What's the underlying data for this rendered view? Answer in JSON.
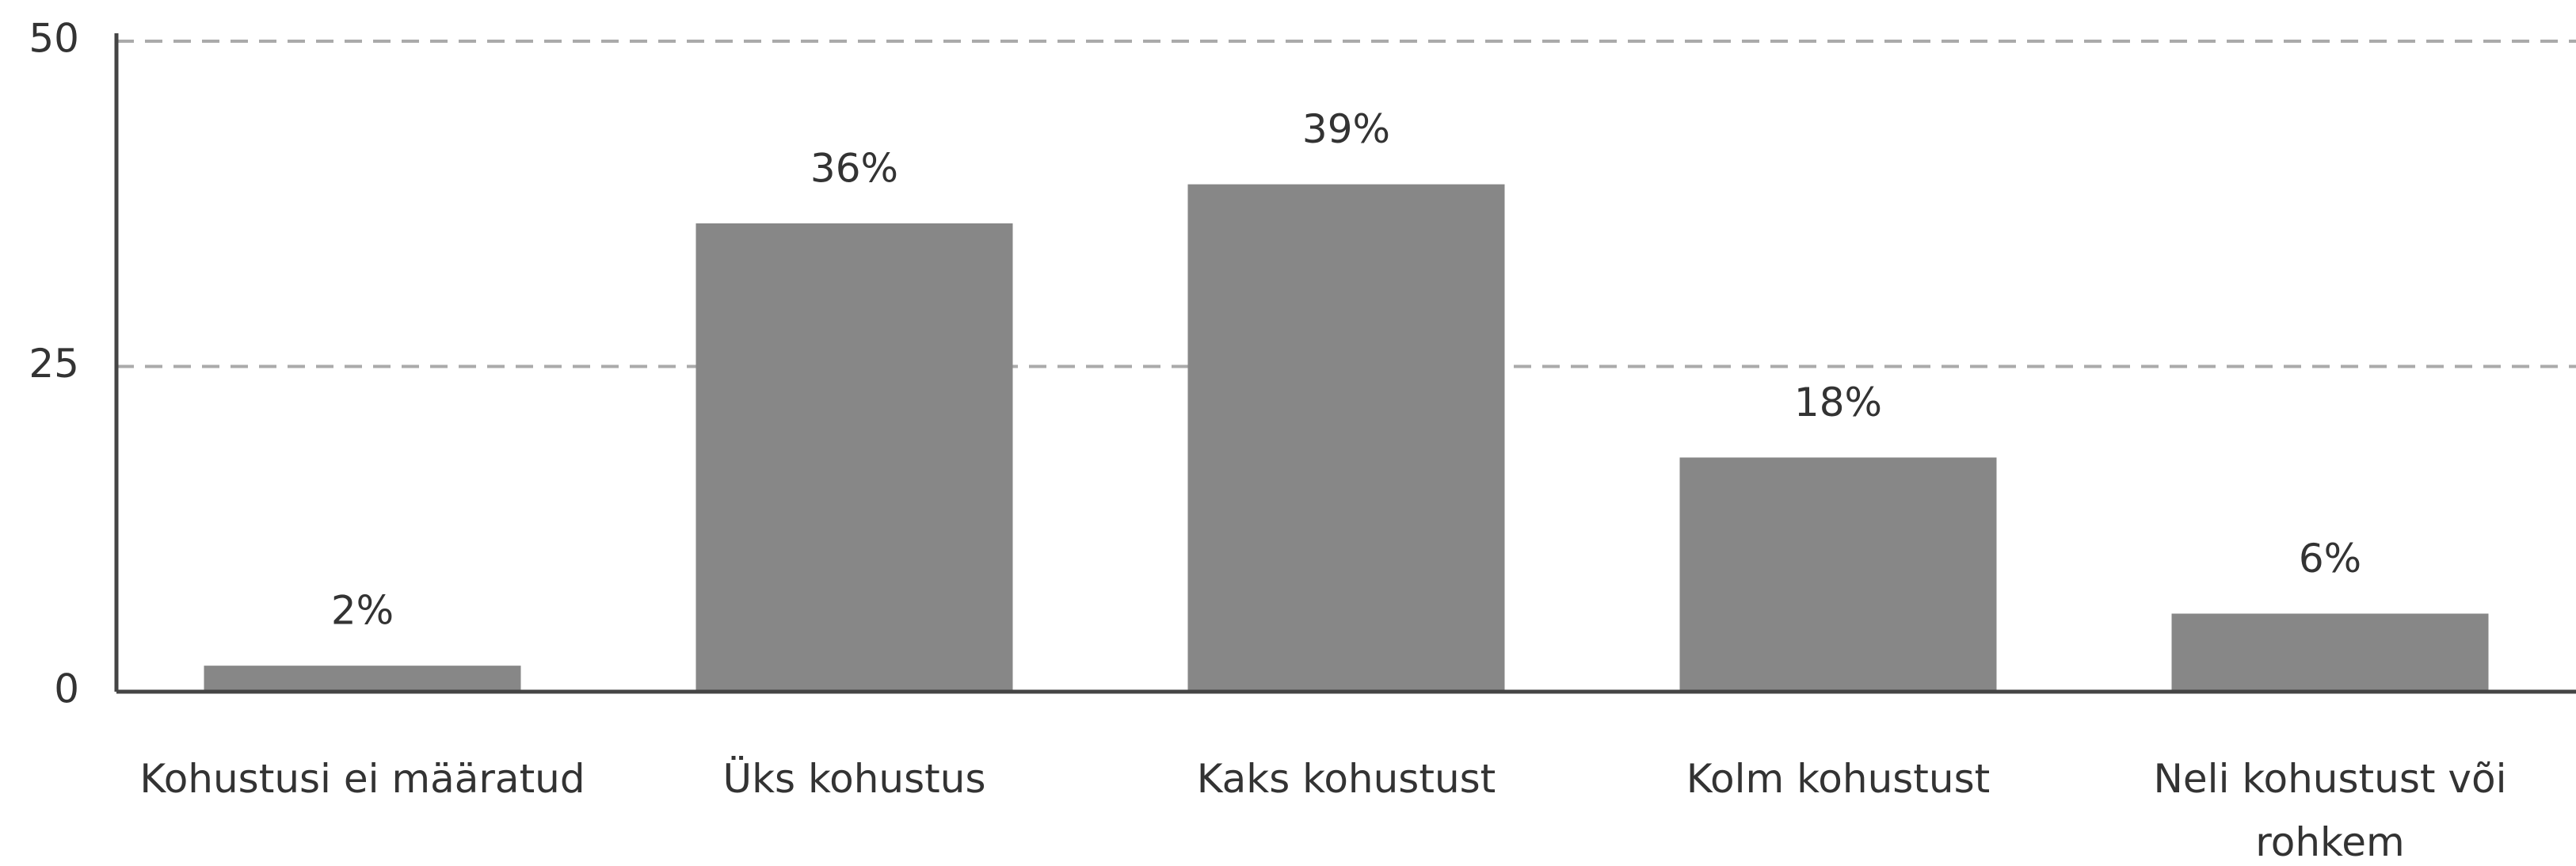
{
  "chart_data": {
    "type": "bar",
    "categories": [
      "Kohustusi ei määratud",
      "Üks kohustus",
      "Kaks kohustust",
      "Kolm kohustust",
      "Neli kohustust või rohkem"
    ],
    "values": [
      2,
      36,
      39,
      18,
      6
    ],
    "value_labels": [
      "2%",
      "36%",
      "39%",
      "18%",
      "6%"
    ],
    "color": "#878787",
    "ylim": [
      0,
      50
    ],
    "yticks": [
      0,
      25,
      50
    ],
    "grid": true
  }
}
